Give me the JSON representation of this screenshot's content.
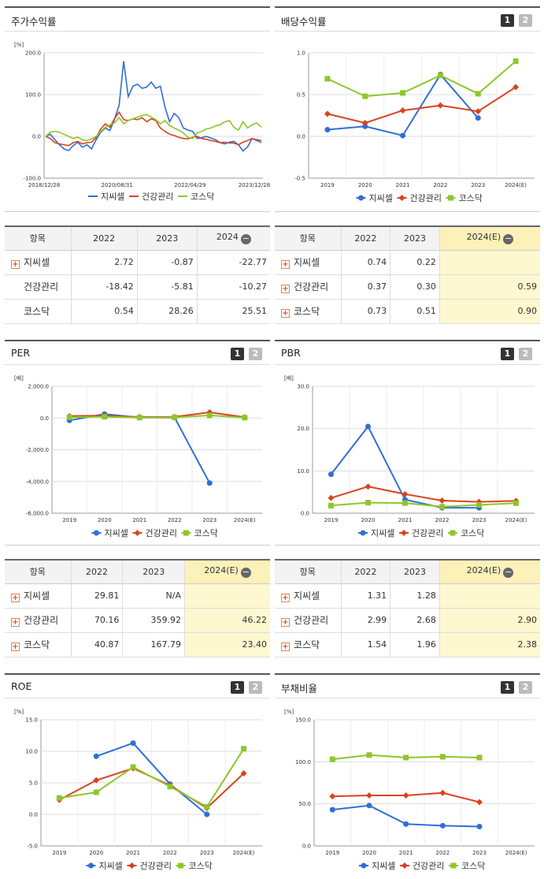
{
  "colors": {
    "jiwissel": "#2f6fd6",
    "health": "#d9431e",
    "kosdaq": "#8ec62b"
  },
  "legend": [
    "지씨셀",
    "건강관리",
    "코스닥"
  ],
  "panels": {
    "stock": {
      "title": "주가수익률",
      "unit": "[%]"
    },
    "dividend": {
      "title": "배당수익률",
      "page1": "1",
      "page2": "2"
    },
    "per": {
      "title": "PER",
      "unit": "[배]",
      "page1": "1",
      "page2": "2"
    },
    "pbr": {
      "title": "PBR",
      "unit": "[배]",
      "page1": "1",
      "page2": "2"
    },
    "roe": {
      "title": "ROE",
      "unit": "[%]",
      "page1": "1",
      "page2": "2"
    },
    "debt": {
      "title": "부채비율",
      "unit": "[%]",
      "page1": "1",
      "page2": "2"
    }
  },
  "tables": {
    "stock": {
      "headers": [
        "항목",
        "2022",
        "2023",
        "2024"
      ],
      "rows": [
        {
          "name": "지씨셀",
          "plus": true,
          "vals": [
            "2.72",
            "-0.87",
            "-22.77"
          ]
        },
        {
          "name": "건강관리",
          "plus": false,
          "vals": [
            "-18.42",
            "-5.81",
            "-10.27"
          ]
        },
        {
          "name": "코스닥",
          "plus": false,
          "vals": [
            "0.54",
            "28.26",
            "25.51"
          ]
        }
      ]
    },
    "dividend": {
      "headers": [
        "항목",
        "2022",
        "2023",
        "2024(E)"
      ],
      "rows": [
        {
          "name": "지씨셀",
          "plus": true,
          "vals": [
            "0.74",
            "0.22",
            ""
          ]
        },
        {
          "name": "건강관리",
          "plus": true,
          "vals": [
            "0.37",
            "0.30",
            "0.59"
          ]
        },
        {
          "name": "코스닥",
          "plus": true,
          "vals": [
            "0.73",
            "0.51",
            "0.90"
          ]
        }
      ]
    },
    "per": {
      "headers": [
        "항목",
        "2022",
        "2023",
        "2024(E)"
      ],
      "rows": [
        {
          "name": "지씨셀",
          "plus": true,
          "vals": [
            "29.81",
            "N/A",
            ""
          ]
        },
        {
          "name": "건강관리",
          "plus": true,
          "vals": [
            "70.16",
            "359.92",
            "46.22"
          ]
        },
        {
          "name": "코스닥",
          "plus": true,
          "vals": [
            "40.87",
            "167.79",
            "23.40"
          ]
        }
      ]
    },
    "pbr": {
      "headers": [
        "항목",
        "2022",
        "2023",
        "2024(E)"
      ],
      "rows": [
        {
          "name": "지씨셀",
          "plus": true,
          "vals": [
            "1.31",
            "1.28",
            ""
          ]
        },
        {
          "name": "건강관리",
          "plus": true,
          "vals": [
            "2.99",
            "2.68",
            "2.90"
          ]
        },
        {
          "name": "코스닥",
          "plus": true,
          "vals": [
            "1.54",
            "1.96",
            "2.38"
          ]
        }
      ]
    }
  },
  "chart_data": [
    {
      "id": "stock",
      "type": "line",
      "title": "주가수익률",
      "ylim": [
        -100,
        200
      ],
      "yticks": [
        "200.0",
        "100.0",
        "0.0",
        "-100.0"
      ],
      "xticks": [
        "2018/12/28",
        "2020/08/31",
        "2022/04/29",
        "2023/12/28"
      ],
      "series": [
        {
          "name": "지씨셀",
          "values": [
            0,
            5,
            -8,
            -20,
            -30,
            -34,
            -22,
            -14,
            -26,
            -20,
            -30,
            -8,
            10,
            20,
            14,
            40,
            75,
            180,
            95,
            120,
            125,
            115,
            118,
            130,
            115,
            120,
            70,
            35,
            55,
            45,
            20,
            15,
            12,
            -5,
            -3,
            0,
            -4,
            -8,
            -15,
            -18,
            -14,
            -12,
            -20,
            -35,
            -25,
            -5,
            -10,
            -15
          ]
        },
        {
          "name": "건강관리",
          "values": [
            0,
            -5,
            -15,
            -18,
            -20,
            -22,
            -15,
            -12,
            -18,
            -15,
            -14,
            -2,
            18,
            30,
            22,
            42,
            58,
            40,
            38,
            42,
            40,
            45,
            35,
            42,
            38,
            20,
            12,
            5,
            2,
            -2,
            -5,
            -6,
            -2,
            0,
            -5,
            -7,
            -10,
            -12,
            -15,
            -14,
            -16,
            -16,
            -20,
            -14,
            -10,
            -5,
            -8,
            -10
          ]
        },
        {
          "name": "코스닥",
          "values": [
            0,
            10,
            12,
            10,
            5,
            0,
            -5,
            -2,
            -8,
            -10,
            -6,
            0,
            12,
            22,
            28,
            32,
            45,
            30,
            38,
            42,
            46,
            50,
            52,
            46,
            40,
            30,
            38,
            26,
            20,
            15,
            8,
            -2,
            -5,
            8,
            12,
            18,
            20,
            25,
            28,
            35,
            38,
            22,
            15,
            35,
            20,
            28,
            32,
            22
          ]
        }
      ]
    },
    {
      "id": "dividend",
      "type": "line",
      "title": "배당수익률",
      "ylim": [
        -0.5,
        1.0
      ],
      "yticks": [
        "1.0",
        "0.5",
        "0.0",
        "-0.5"
      ],
      "categories": [
        "2019",
        "2020",
        "2021",
        "2022",
        "2023",
        "2024(E)"
      ],
      "series": [
        {
          "name": "지씨셀",
          "values": [
            0.08,
            0.12,
            0.01,
            0.74,
            0.22,
            null
          ]
        },
        {
          "name": "건강관리",
          "values": [
            0.27,
            0.16,
            0.31,
            0.37,
            0.3,
            0.59
          ]
        },
        {
          "name": "코스닥",
          "values": [
            0.69,
            0.48,
            0.52,
            0.73,
            0.51,
            0.9
          ]
        }
      ]
    },
    {
      "id": "per",
      "type": "line",
      "title": "PER",
      "ylim": [
        -6000,
        2000
      ],
      "yticks": [
        "2,000.0",
        "0.0",
        "-2,000.0",
        "-4,000.0",
        "-6,000.0"
      ],
      "categories": [
        "2019",
        "2020",
        "2021",
        "2022",
        "2023",
        "2024(E)"
      ],
      "series": [
        {
          "name": "지씨셀",
          "values": [
            -150,
            250,
            30,
            29.81,
            -4100,
            null
          ]
        },
        {
          "name": "건강관리",
          "values": [
            120,
            150,
            60,
            70.16,
            359.92,
            46.22
          ]
        },
        {
          "name": "코스닥",
          "values": [
            50,
            80,
            30,
            40.87,
            167.79,
            23.4
          ]
        }
      ]
    },
    {
      "id": "pbr",
      "type": "line",
      "title": "PBR",
      "ylim": [
        0,
        30
      ],
      "yticks": [
        "30.0",
        "20.0",
        "10.0",
        "0.0"
      ],
      "categories": [
        "2019",
        "2020",
        "2021",
        "2022",
        "2023",
        "2024(E)"
      ],
      "series": [
        {
          "name": "지씨셀",
          "values": [
            9.2,
            20.5,
            3.2,
            1.31,
            1.28,
            null
          ]
        },
        {
          "name": "건강관리",
          "values": [
            3.6,
            6.3,
            4.5,
            2.99,
            2.68,
            2.9
          ]
        },
        {
          "name": "코스닥",
          "values": [
            1.8,
            2.5,
            2.4,
            1.54,
            1.96,
            2.38
          ]
        }
      ]
    },
    {
      "id": "roe",
      "type": "line",
      "title": "ROE",
      "ylim": [
        -5,
        15
      ],
      "yticks": [
        "15.0",
        "10.0",
        "5.0",
        "0.0",
        "-5.0"
      ],
      "categories": [
        "2019",
        "2020",
        "2021",
        "2022",
        "2023",
        "2024(E)"
      ],
      "series": [
        {
          "name": "지씨셀",
          "values": [
            null,
            9.2,
            11.3,
            4.8,
            0.0,
            null
          ]
        },
        {
          "name": "건강관리",
          "values": [
            2.3,
            5.4,
            7.3,
            4.6,
            1.0,
            6.5
          ]
        },
        {
          "name": "코스닥",
          "values": [
            2.6,
            3.5,
            7.5,
            4.4,
            1.2,
            10.4
          ]
        }
      ]
    },
    {
      "id": "debt",
      "type": "line",
      "title": "부채비율",
      "ylim": [
        0,
        150
      ],
      "yticks": [
        "150.0",
        "100.0",
        "50.0",
        "0.0"
      ],
      "categories": [
        "2019",
        "2020",
        "2021",
        "2022",
        "2023",
        "2024(E)"
      ],
      "series": [
        {
          "name": "지씨셀",
          "values": [
            43,
            48,
            26,
            24,
            23,
            null
          ]
        },
        {
          "name": "건강관리",
          "values": [
            59,
            60,
            60,
            63,
            52,
            null
          ]
        },
        {
          "name": "코스닥",
          "values": [
            103,
            108,
            105,
            106,
            105,
            null
          ]
        }
      ]
    }
  ]
}
